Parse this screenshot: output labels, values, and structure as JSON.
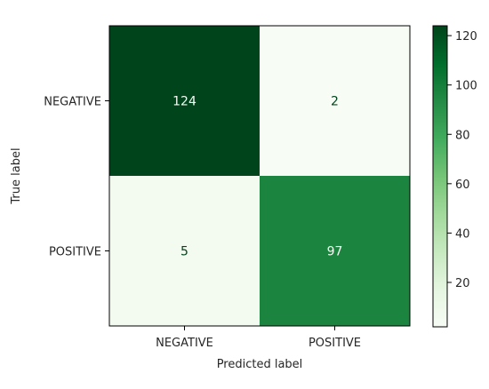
{
  "chart_data": {
    "type": "heatmap",
    "title": "",
    "xlabel": "Predicted label",
    "ylabel": "True label",
    "x_categories": [
      "NEGATIVE",
      "POSITIVE"
    ],
    "y_categories": [
      "NEGATIVE",
      "POSITIVE"
    ],
    "values": [
      [
        124,
        2
      ],
      [
        5,
        97
      ]
    ],
    "cell_labels": [
      [
        "124",
        "2"
      ],
      [
        "5",
        "97"
      ]
    ],
    "colormap": "Greens",
    "colorbar": {
      "range": [
        2,
        124
      ],
      "ticks": [
        20,
        40,
        60,
        80,
        100,
        120
      ],
      "tick_labels": [
        "20",
        "40",
        "60",
        "80",
        "100",
        "120"
      ]
    },
    "grid": false,
    "colors": {
      "high": "#00441b",
      "low": "#f7fcf5",
      "text_on_dark": "#f7fcf5",
      "text_on_light": "#00441b"
    }
  }
}
